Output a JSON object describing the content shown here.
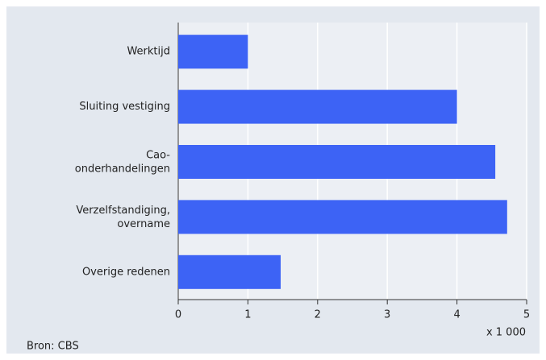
{
  "chart_data": {
    "type": "bar",
    "orientation": "horizontal",
    "categories": [
      "Werktijd",
      "Sluiting vestiging",
      "Cao-\nonderhandelingen",
      "Verzelfstandiging,\novername",
      "Overige redenen"
    ],
    "values": [
      1.0,
      4.0,
      4.55,
      4.72,
      1.47
    ],
    "color": "#3d63f5",
    "xlim": [
      0,
      5
    ],
    "xticks": [
      0,
      1,
      2,
      3,
      4,
      5
    ],
    "x_axis_label": "x 1 000",
    "source": "Bron: CBS",
    "grid": true
  }
}
